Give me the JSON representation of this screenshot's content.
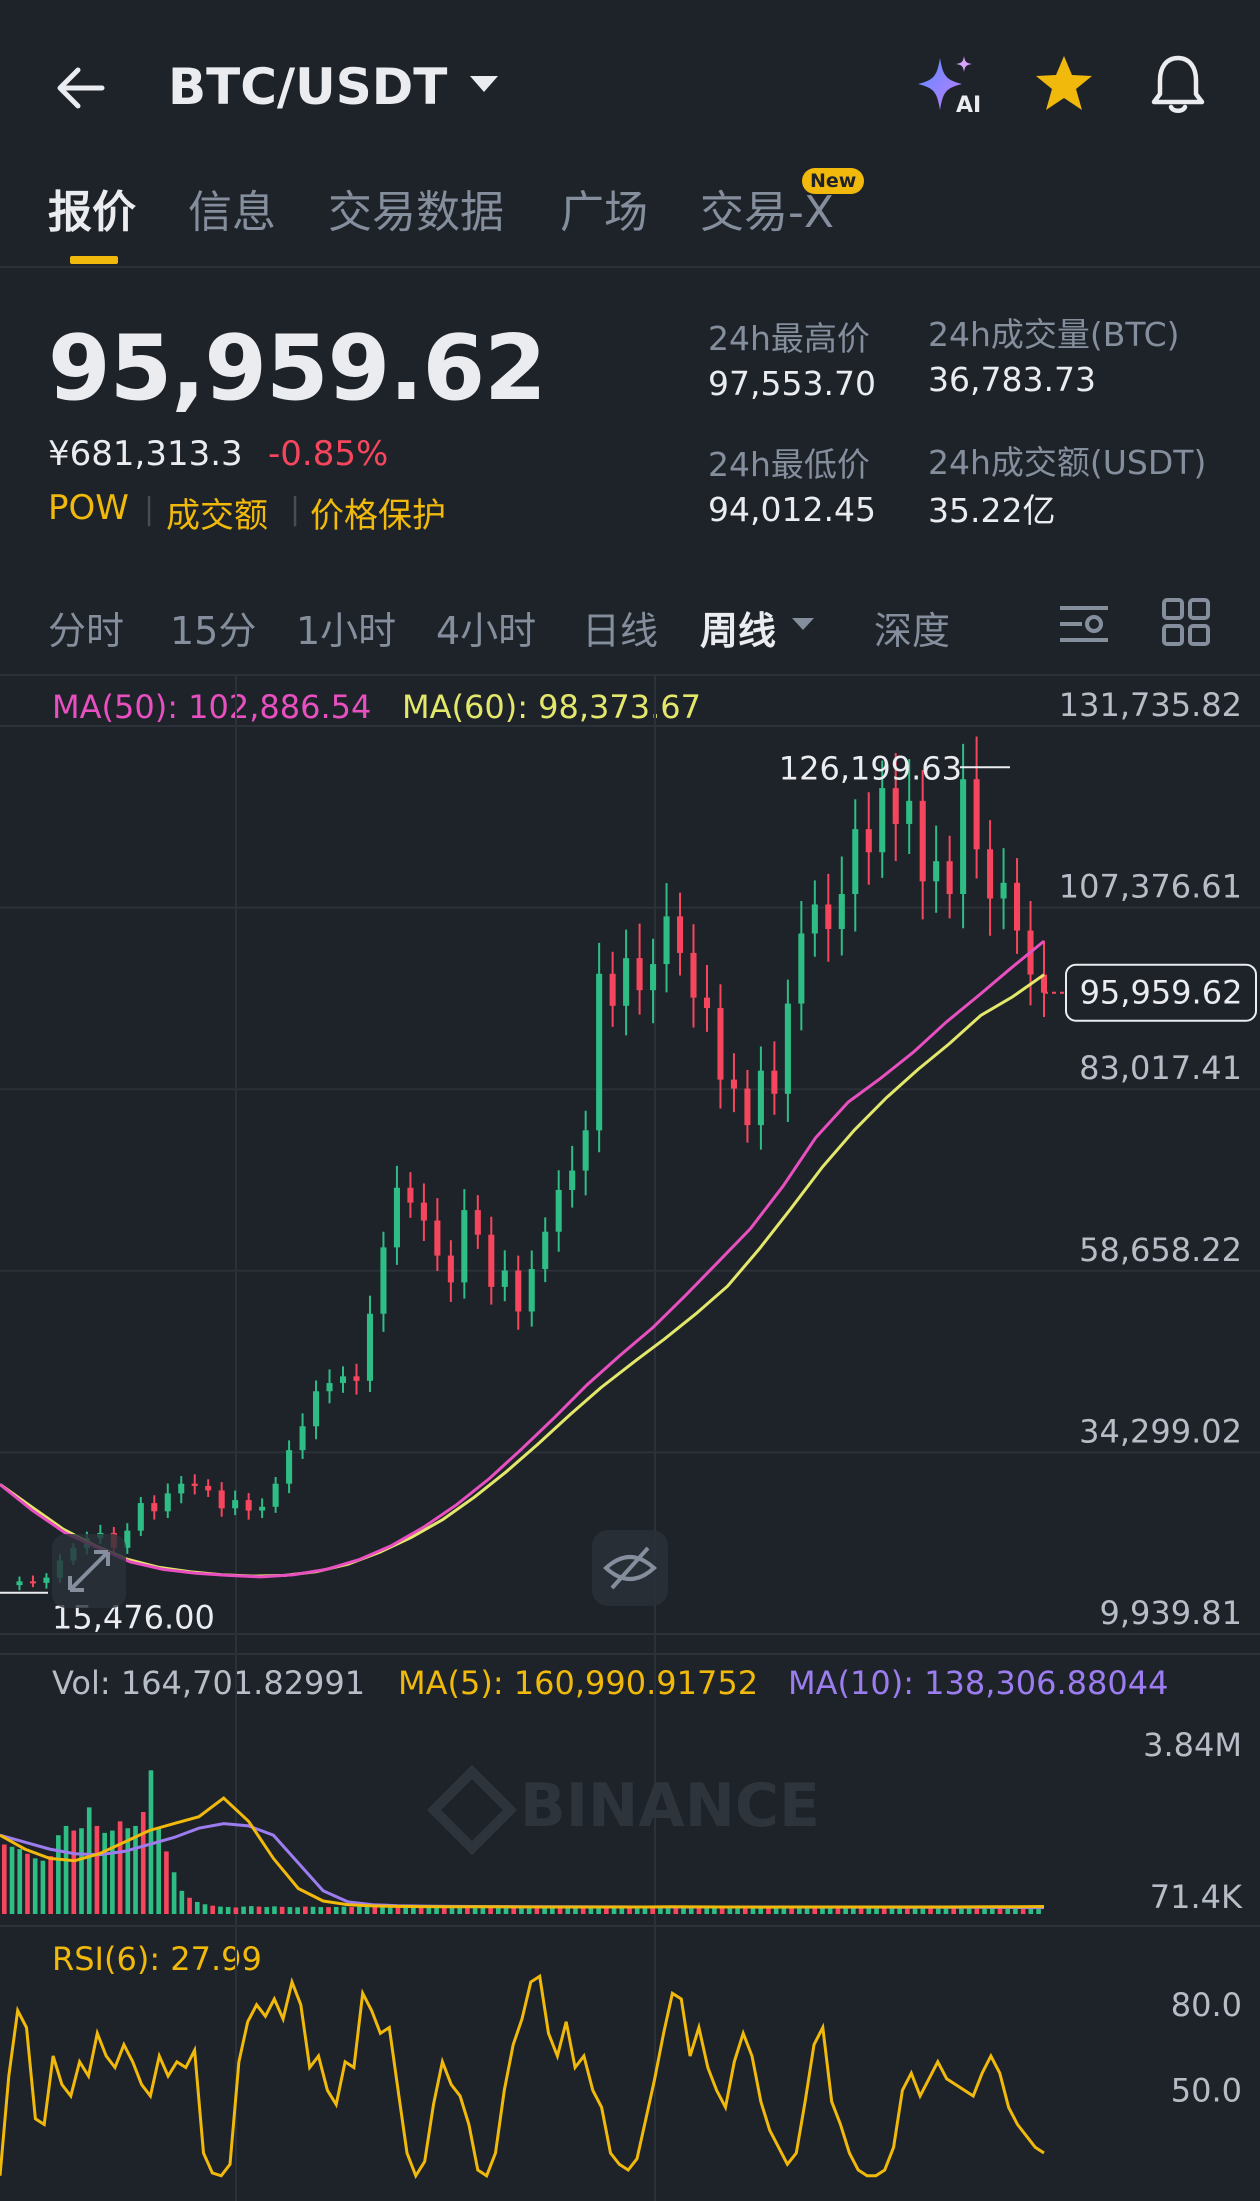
{
  "header": {
    "pair": "BTC/USDT",
    "icons": [
      "back-arrow-icon",
      "ai-sparkle-icon",
      "star-icon",
      "bell-icon"
    ],
    "ai_label": "AI"
  },
  "tabs": [
    {
      "label": "报价",
      "active": true
    },
    {
      "label": "信息",
      "active": false
    },
    {
      "label": "交易数据",
      "active": false
    },
    {
      "label": "广场",
      "active": false
    },
    {
      "label": "交易-X",
      "active": false,
      "badge": "New"
    }
  ],
  "ticker": {
    "price": "95,959.62",
    "price_cny": "¥681,313.3",
    "change_pct": "-0.85%",
    "tags": [
      "POW",
      "成交额",
      "价格保护"
    ],
    "stats": [
      {
        "label": "24h最高价",
        "value": "97,553.70"
      },
      {
        "label": "24h成交量(BTC)",
        "value": "36,783.73"
      },
      {
        "label": "24h最低价",
        "value": "94,012.45"
      },
      {
        "label": "24h成交额(USDT)",
        "value": "35.22亿"
      }
    ]
  },
  "intervals": [
    {
      "label": "分时",
      "active": false
    },
    {
      "label": "15分",
      "active": false
    },
    {
      "label": "1小时",
      "active": false
    },
    {
      "label": "4小时",
      "active": false
    },
    {
      "label": "日线",
      "active": false
    },
    {
      "label": "周线",
      "active": true
    },
    {
      "label": "深度",
      "active": false
    }
  ],
  "colors": {
    "up": "#2ebd85",
    "down": "#f6465d",
    "ma50": "#e84fc0",
    "ma60": "#e3e86a",
    "vol_ma5": "#f0b90b",
    "vol_ma10": "#9c7df0",
    "rsi": "#f0b90b",
    "accent": "#f0b90b",
    "background": "#1e2329"
  },
  "indicators": {
    "ma50_label": "MA(50): 102,886.54",
    "ma60_label": "MA(60): 98,373.67",
    "vol_label": "Vol: 164,701.82991",
    "vol_ma5_label": "MA(5): 160,990.91752",
    "vol_ma10_label": "MA(10): 138,306.88044",
    "rsi_label": "RSI(6): 27.99"
  },
  "chart_data": [
    {
      "type": "candlestick",
      "title": "",
      "y_axis_labels": [
        "131,735.82",
        "107,376.61",
        "83,017.41",
        "58,658.22",
        "34,299.02",
        "9,939.81"
      ],
      "y_ticks": [
        131735.82,
        107376.61,
        83017.41,
        58658.22,
        34299.02,
        9939.81
      ],
      "ylim": [
        9939.81,
        131735.82
      ],
      "last_price": 95959.62,
      "last_price_label": "95,959.62",
      "high_marker": {
        "label": "126,199.63",
        "value": 126199.63
      },
      "low_marker": {
        "label": "15,476.00",
        "value": 15476.0
      },
      "watermark": "BINANCE",
      "series": [
        {
          "name": "MA(50)",
          "values": [
            30000,
            26500,
            23500,
            21500,
            19600,
            18600,
            18100,
            17800,
            17600,
            17900,
            18600,
            19900,
            21800,
            24300,
            27300,
            30800,
            34800,
            39000,
            43400,
            47300,
            51000,
            55300,
            59800,
            64300,
            70000,
            76500,
            81300,
            84500,
            88000,
            92000,
            95600,
            99300,
            102886.54
          ]
        },
        {
          "name": "MA(60)",
          "values": [
            30000,
            27000,
            24000,
            21800,
            20000,
            18900,
            18300,
            17900,
            17700,
            17800,
            18300,
            19300,
            20900,
            22900,
            25300,
            28300,
            31700,
            35400,
            39300,
            43000,
            46300,
            49500,
            52900,
            56600,
            61600,
            67000,
            72600,
            77500,
            81800,
            85600,
            89100,
            92900,
            95400,
            98373.67
          ]
        }
      ],
      "price_path": [
        16500,
        17000,
        16800,
        17500,
        19800,
        21500,
        22800,
        23500,
        21500,
        23800,
        27500,
        26400,
        28800,
        30100,
        29800,
        29200,
        26800,
        27900,
        26500,
        27000,
        30100,
        34600,
        37800,
        42500,
        43600,
        44500,
        43900,
        52900,
        61800,
        69800,
        67800,
        65400,
        60700,
        57100,
        66800,
        63500,
        56500,
        58700,
        53200,
        58900,
        63900,
        69500,
        72100,
        77500,
        98500,
        94200,
        100600,
        96300,
        99800,
        106200,
        101300,
        95300,
        93900,
        84300,
        83100,
        78200,
        85500,
        82400,
        94500,
        103900,
        107800,
        104500,
        109200,
        117900,
        114800,
        123400,
        118600,
        121700,
        110900,
        113600,
        109200,
        124600,
        115200,
        108600,
        110700,
        104300,
        98400,
        95959.62
      ]
    },
    {
      "type": "bar",
      "title": "",
      "y_axis_labels": [
        "3.84M",
        "71.4K"
      ],
      "y_ticks": [
        3840000,
        71400
      ],
      "values": [
        1500000,
        1450000,
        1400000,
        1300000,
        1200000,
        1150000,
        1250000,
        1700000,
        1900000,
        1800000,
        1850000,
        2300000,
        1900000,
        1750000,
        1800000,
        2000000,
        1850000,
        1900000,
        2200000,
        3100000,
        1850000,
        1350000,
        900000,
        500000,
        350000,
        260000,
        210000,
        180000,
        160000,
        150000,
        140000,
        160000,
        170000,
        160000,
        150000,
        165000,
        155000,
        150000,
        145000,
        160000,
        155000,
        150000,
        148000,
        152000,
        158000,
        150000,
        160000,
        170000,
        165000,
        150000,
        148000,
        160000,
        175000,
        162000,
        150000,
        145000,
        155000,
        165000,
        152000,
        150000,
        148000,
        145000,
        158000,
        165000,
        160000,
        150000,
        148000,
        142000,
        150000,
        165000,
        155000,
        150000,
        148000,
        152000,
        150000,
        145000,
        142000,
        140000,
        150000,
        155000,
        152000,
        150000,
        145000,
        150000,
        155000,
        148000,
        145000,
        140000,
        150000,
        152000,
        148000,
        145000,
        150000,
        155000,
        160000,
        150000,
        148000,
        145000,
        142000,
        148000,
        150000,
        155000,
        158000,
        150000,
        145000,
        148000,
        150000,
        155000,
        152000,
        150000,
        148000,
        145000,
        150000,
        155000,
        160000,
        158000,
        150000,
        148000,
        155000,
        160000,
        152000,
        150000,
        148000,
        145000,
        142000,
        150000,
        155000,
        158000,
        150000,
        148000,
        145000,
        150000,
        155000,
        160000,
        164701.82991
      ],
      "series": [
        {
          "name": "MA(5)",
          "values": [
            1700000,
            1400000,
            1200000,
            1150000,
            1300000,
            1550000,
            1800000,
            1950000,
            2100000,
            2500000,
            2000000,
            1200000,
            550000,
            280000,
            200000,
            175000,
            165000,
            160000,
            158000,
            155000,
            155000,
            153000,
            152000,
            151000,
            150000,
            150000,
            152000,
            155000,
            153000,
            150000,
            150000,
            149000,
            150000,
            151000,
            152000,
            151000,
            150000,
            150000,
            152000,
            154000,
            156000,
            158000,
            160990.91752
          ]
        },
        {
          "name": "MA(10)",
          "values": [
            1700000,
            1550000,
            1400000,
            1300000,
            1280000,
            1350000,
            1500000,
            1650000,
            1850000,
            1950000,
            1900000,
            1700000,
            1100000,
            500000,
            260000,
            200000,
            180000,
            170000,
            165000,
            162000,
            160000,
            158000,
            156000,
            155000,
            154000,
            153000,
            152000,
            152000,
            151000,
            150000,
            150000,
            150000,
            150000,
            149000,
            149000,
            148000,
            147000,
            146000,
            145000,
            144000,
            142000,
            140000,
            138306.88044
          ]
        }
      ]
    },
    {
      "type": "line",
      "title": "",
      "y_axis_labels": [
        "80.0",
        "50.0"
      ],
      "y_ticks": [
        80.0,
        50.0
      ],
      "ylim": [
        15,
        95
      ],
      "series": [
        {
          "name": "RSI(6)",
          "values": [
            20,
            55,
            78,
            72,
            40,
            38,
            62,
            52,
            48,
            60,
            55,
            70,
            62,
            58,
            66,
            60,
            52,
            48,
            62,
            55,
            60,
            58,
            64,
            28,
            21,
            20,
            24,
            60,
            74,
            80,
            76,
            82,
            75,
            88,
            80,
            58,
            62,
            50,
            45,
            60,
            58,
            84,
            78,
            70,
            72,
            50,
            28,
            20,
            25,
            45,
            60,
            52,
            48,
            38,
            22,
            20,
            28,
            50,
            66,
            75,
            88,
            90,
            70,
            62,
            74,
            58,
            62,
            50,
            44,
            28,
            24,
            22,
            26,
            40,
            54,
            70,
            84,
            82,
            62,
            72,
            58,
            50,
            44,
            60,
            70,
            62,
            46,
            36,
            30,
            24,
            28,
            46,
            66,
            72,
            46,
            38,
            28,
            22,
            20,
            20,
            22,
            30,
            50,
            56,
            48,
            54,
            60,
            54,
            52,
            50,
            48,
            56,
            62,
            56,
            44,
            38,
            34,
            30,
            27.99
          ]
        }
      ]
    }
  ]
}
